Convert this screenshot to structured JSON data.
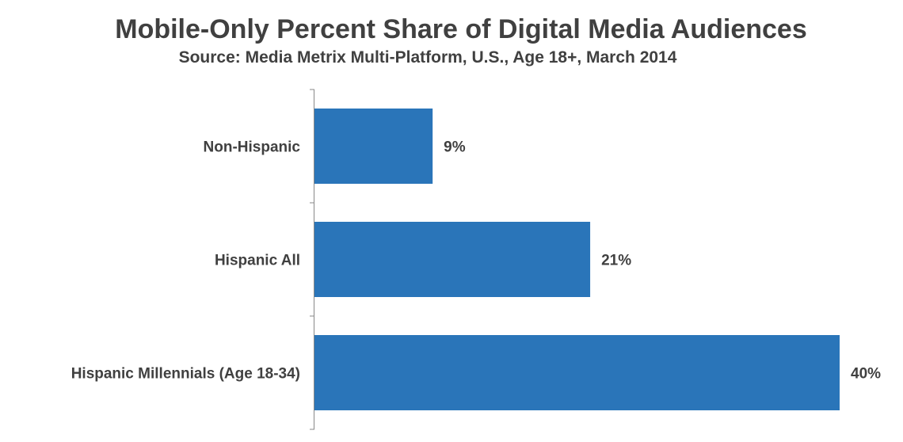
{
  "chart_data": {
    "type": "bar",
    "orientation": "horizontal",
    "title": "Mobile-Only Percent Share of Digital Media Audiences",
    "subtitle": "Source: Media Metrix Multi-Platform, U.S., Age 18+, March 2014",
    "categories": [
      "Non-Hispanic",
      "Hispanic All",
      "Hispanic Millennials (Age 18-34)"
    ],
    "values": [
      9,
      21,
      40
    ],
    "data_labels": [
      "9%",
      "21%",
      "40%"
    ],
    "unit": "%",
    "xlim": [
      0,
      40
    ],
    "grid": false,
    "legend": "none",
    "bar_color": "#2A75B9"
  }
}
